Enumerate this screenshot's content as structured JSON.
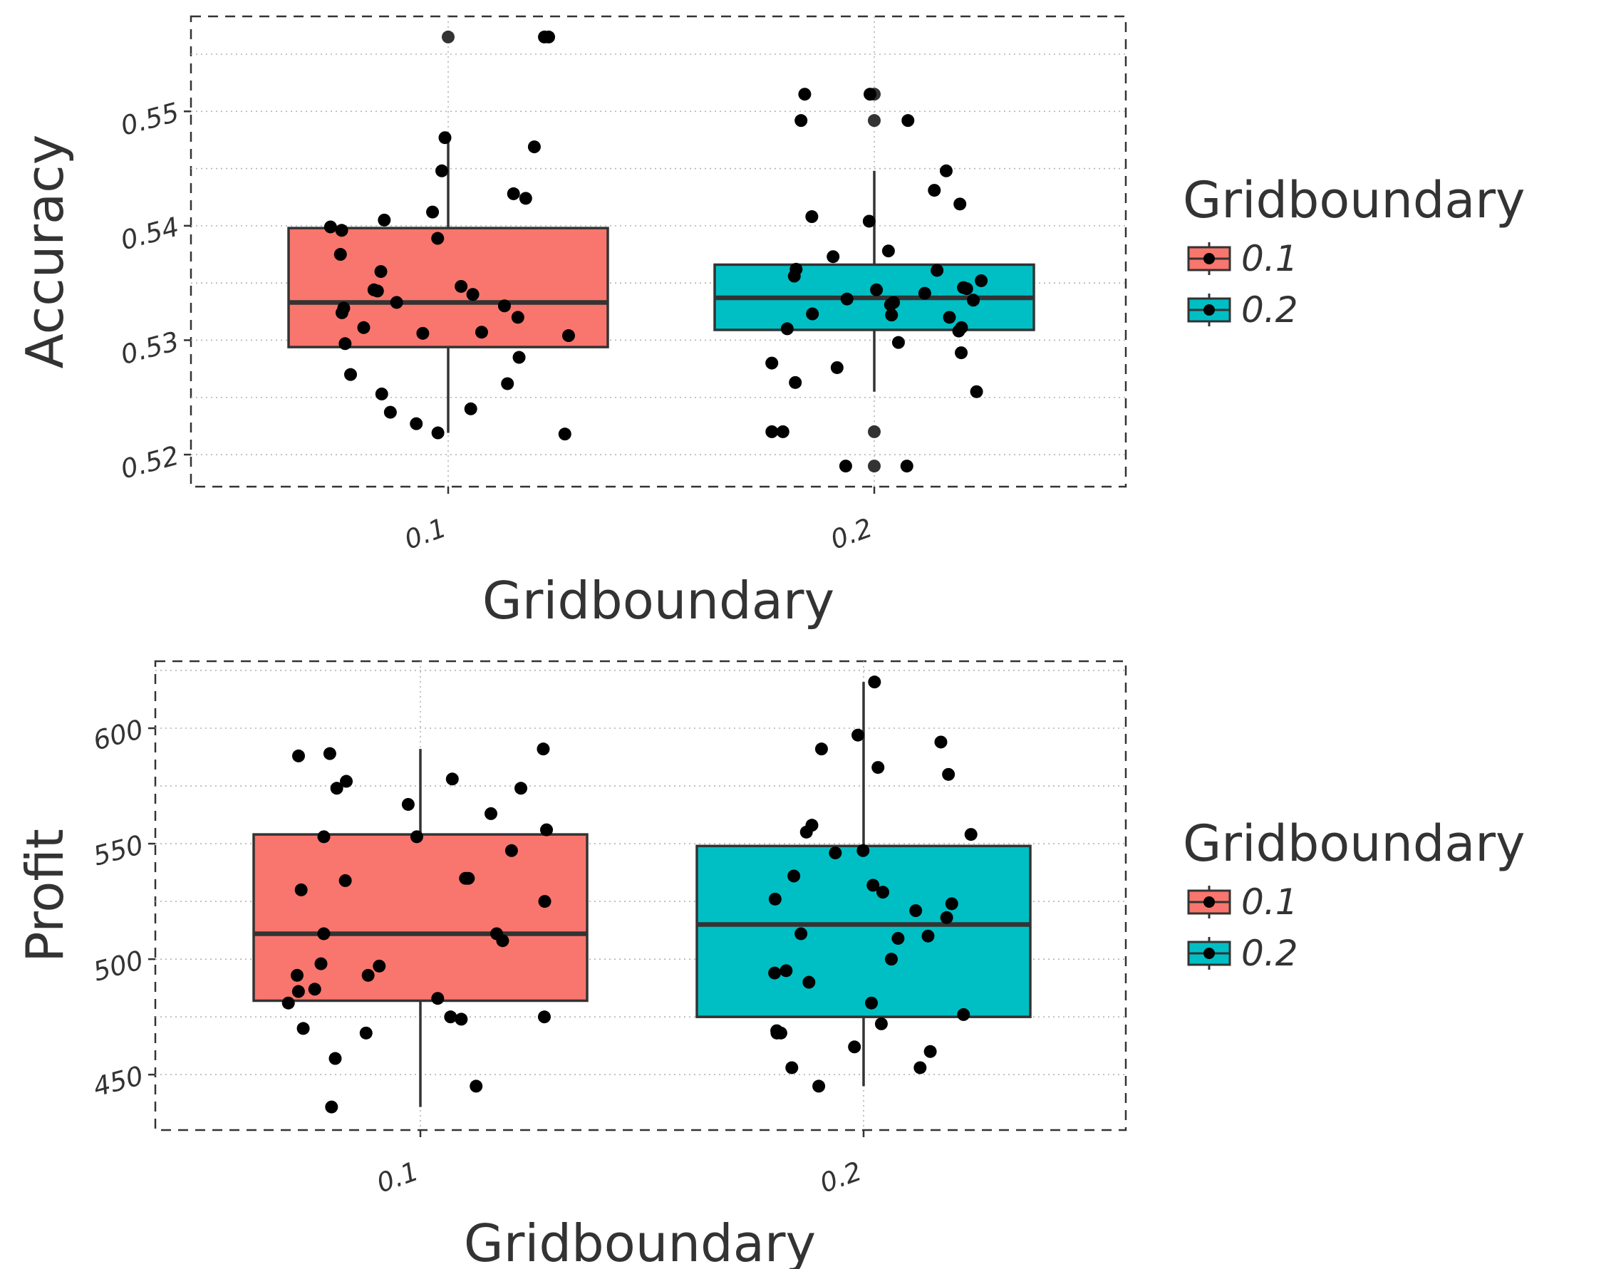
{
  "chart_data": [
    {
      "type": "boxplot",
      "xlabel": "Gridboundary",
      "ylabel": "Accuracy",
      "categories": [
        "0.1",
        "0.2"
      ],
      "ylim": [
        0.5172,
        0.5583
      ],
      "yticks": [
        0.52,
        0.53,
        0.54,
        0.55
      ],
      "ytick_labels": [
        "0.52",
        "0.53",
        "0.54",
        "0.55"
      ],
      "grid": true,
      "legend": {
        "title": "Gridboundary",
        "position": "right",
        "entries": [
          "0.1",
          "0.2"
        ]
      },
      "boxes": [
        {
          "category": "0.1",
          "q1": 0.5294,
          "median": 0.5333,
          "q3": 0.5398,
          "whisker_low": 0.5219,
          "whisker_high": 0.5477,
          "outliers": [
            0.5565
          ]
        },
        {
          "category": "0.2",
          "q1": 0.5309,
          "median": 0.5337,
          "q3": 0.5366,
          "whisker_low": 0.5255,
          "whisker_high": 0.5448,
          "outliers": [
            0.5515,
            0.5492,
            0.522,
            0.519
          ]
        }
      ],
      "points": [
        {
          "category": "0.1",
          "values": [
            0.5565,
            0.5565,
            0.5469,
            0.5477,
            0.5448,
            0.5428,
            0.5424,
            0.5412,
            0.5405,
            0.5399,
            0.5396,
            0.5389,
            0.5375,
            0.536,
            0.5347,
            0.5344,
            0.5343,
            0.534,
            0.5333,
            0.533,
            0.5328,
            0.5324,
            0.532,
            0.5311,
            0.5307,
            0.5306,
            0.5304,
            0.5297,
            0.5285,
            0.527,
            0.5262,
            0.5253,
            0.524,
            0.5237,
            0.5227,
            0.5219,
            0.5218
          ]
        },
        {
          "category": "0.2",
          "values": [
            0.5515,
            0.5515,
            0.5492,
            0.5492,
            0.5448,
            0.5431,
            0.5419,
            0.5408,
            0.5404,
            0.5378,
            0.5373,
            0.5362,
            0.5361,
            0.5356,
            0.5352,
            0.5346,
            0.5345,
            0.5344,
            0.5341,
            0.5336,
            0.5335,
            0.5333,
            0.5331,
            0.5323,
            0.5322,
            0.532,
            0.5311,
            0.531,
            0.5308,
            0.5298,
            0.5289,
            0.528,
            0.5276,
            0.5263,
            0.5255,
            0.522,
            0.522,
            0.519,
            0.519
          ]
        }
      ]
    },
    {
      "type": "boxplot",
      "xlabel": "Gridboundary",
      "ylabel": "Profit",
      "categories": [
        "0.1",
        "0.2"
      ],
      "ylim": [
        426,
        629
      ],
      "yticks": [
        450,
        500,
        550,
        600
      ],
      "ytick_labels": [
        "450",
        "500",
        "550",
        "600"
      ],
      "grid": true,
      "legend": {
        "title": "Gridboundary",
        "position": "right",
        "entries": [
          "0.1",
          "0.2"
        ]
      },
      "boxes": [
        {
          "category": "0.1",
          "q1": 482,
          "median": 511,
          "q3": 554,
          "whisker_low": 436,
          "whisker_high": 591
        },
        {
          "category": "0.2",
          "q1": 475,
          "median": 515,
          "q3": 549,
          "whisker_low": 445,
          "whisker_high": 620
        }
      ],
      "points": [
        {
          "category": "0.1",
          "values": [
            591,
            589,
            588,
            578,
            577,
            574,
            574,
            567,
            563,
            556,
            553,
            553,
            547,
            535,
            535,
            534,
            530,
            525,
            511,
            511,
            508,
            498,
            497,
            493,
            493,
            487,
            486,
            483,
            481,
            475,
            475,
            474,
            470,
            468,
            457,
            445,
            436
          ]
        },
        {
          "category": "0.2",
          "values": [
            620,
            597,
            594,
            591,
            583,
            580,
            558,
            555,
            554,
            547,
            546,
            536,
            532,
            529,
            526,
            524,
            521,
            518,
            511,
            510,
            509,
            500,
            495,
            494,
            490,
            481,
            476,
            472,
            469,
            468,
            468,
            462,
            460,
            453,
            453,
            445
          ]
        }
      ]
    }
  ],
  "colors": {
    "fill_0_1": "#F8766D",
    "fill_0_2": "#00BFC4",
    "line": "#333333",
    "point": "#000000",
    "grid": "#b3b3b3",
    "frame": "#333333"
  }
}
